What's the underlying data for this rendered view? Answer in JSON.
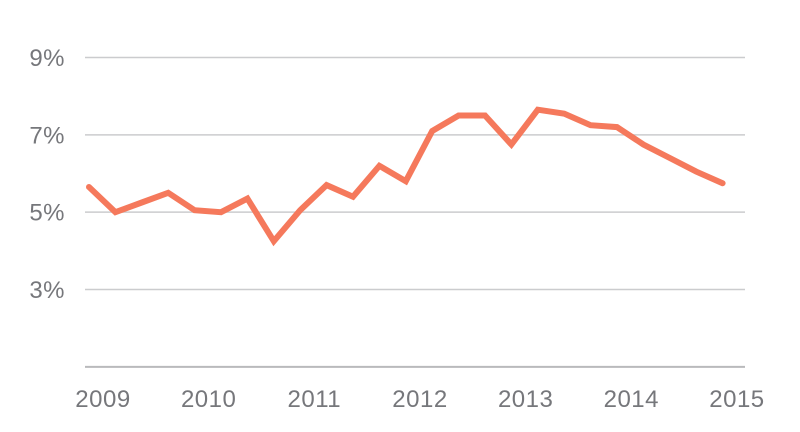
{
  "chart_data": {
    "type": "line",
    "title": "",
    "unit": "percent",
    "x": [
      "2009 Q1",
      "2009 Q2",
      "2009 Q3",
      "2009 Q4",
      "2010 Q1",
      "2010 Q2",
      "2010 Q3",
      "2010 Q4",
      "2011 Q1",
      "2011 Q2",
      "2011 Q3",
      "2011 Q4",
      "2012 Q1",
      "2012 Q2",
      "2012 Q3",
      "2012 Q4",
      "2013 Q1",
      "2013 Q2",
      "2013 Q3",
      "2013 Q4",
      "2014 Q1",
      "2014 Q2",
      "2014 Q3",
      "2014 Q4",
      "2015 Q1"
    ],
    "values": [
      5.65,
      5.0,
      5.25,
      5.5,
      5.05,
      5.0,
      5.35,
      4.25,
      5.05,
      5.7,
      5.4,
      6.2,
      5.8,
      7.1,
      7.5,
      7.5,
      6.75,
      7.65,
      7.55,
      7.25,
      7.2,
      6.75,
      6.4,
      6.05,
      5.75
    ],
    "x_tick_labels": [
      "2009",
      "2010",
      "2011",
      "2012",
      "2013",
      "2014",
      "2015"
    ],
    "y_tick_labels": [
      "9%",
      "7%",
      "5%",
      "3%"
    ],
    "y_tick_values": [
      9,
      7,
      5,
      3
    ],
    "ylim": [
      1,
      10
    ],
    "grid": "horizontal",
    "legend": "none",
    "colors": {
      "line": "#f5795c",
      "gridline": "#cbccce",
      "axis_line": "#b9babc",
      "label": "#76777b"
    }
  }
}
